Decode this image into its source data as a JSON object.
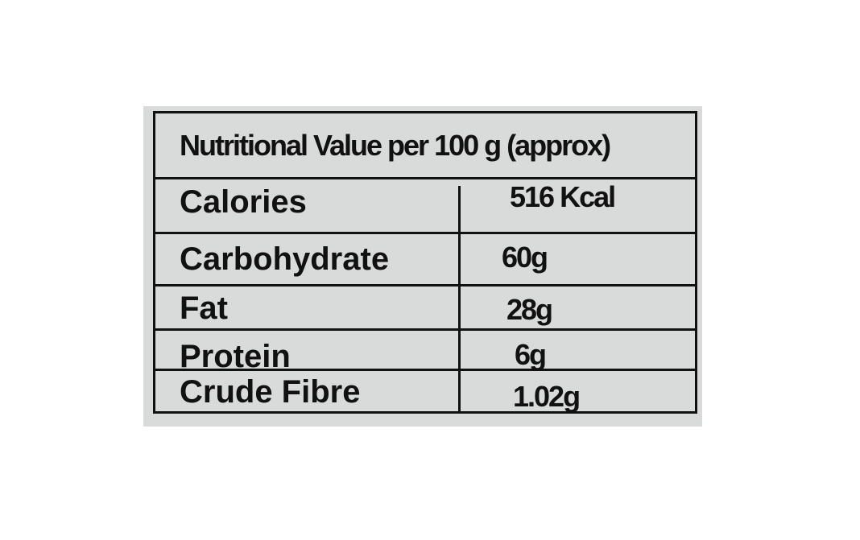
{
  "title": "Nutritional Value per 100 g (approx)",
  "rows": [
    {
      "nutrient": "Calories",
      "value": "516 Kcal"
    },
    {
      "nutrient": "Carbohydrate",
      "value": "60g"
    },
    {
      "nutrient": "Fat",
      "value": "28g"
    },
    {
      "nutrient": "Protein",
      "value": "6g"
    },
    {
      "nutrient": "Crude Fibre",
      "value": "1.02g"
    }
  ]
}
